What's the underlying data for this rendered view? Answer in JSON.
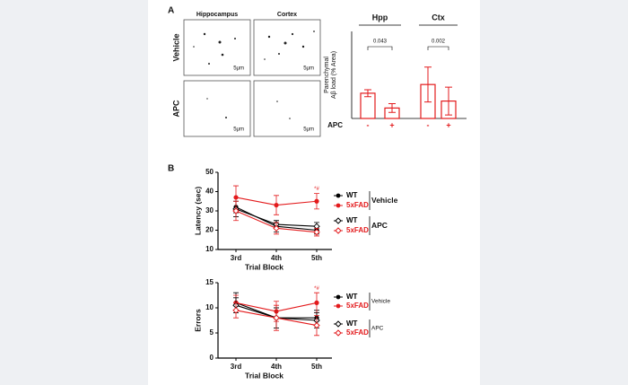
{
  "figure": {
    "panel_a": "A",
    "panel_b": "B",
    "image_columns": [
      "Hippocampus",
      "Cortex"
    ],
    "image_rows": [
      "Vehicle",
      "APC"
    ],
    "scale_bar": "5μm"
  },
  "chart_data": [
    {
      "type": "bar",
      "y_label": [
        "Parenchymal",
        "Aβ load (% Area)"
      ],
      "groups": [
        "Hpp",
        "Ctx"
      ],
      "p_values": [
        "0.043",
        "0.002"
      ],
      "x_label": "APC",
      "bar_labels": [
        "-",
        "+"
      ],
      "values": [
        [
          2.9,
          1.2
        ],
        [
          3.9,
          2.0
        ]
      ],
      "errors": [
        [
          0.4,
          0.5
        ],
        [
          2.0,
          1.6
        ]
      ],
      "color": "#e31a1c",
      "ylim": [
        0,
        10
      ]
    },
    {
      "type": "line",
      "y_label": "Latency (sec)",
      "x_label": "Trial Block",
      "categories": [
        "3rd",
        "4th",
        "5th"
      ],
      "ylim": [
        10,
        50
      ],
      "yticks": [
        10,
        20,
        30,
        40,
        50
      ],
      "annotation": "*#",
      "legend_groups": [
        "Vehicle",
        "APC"
      ],
      "series": [
        {
          "name": "WT",
          "color": "#000000",
          "marker": "filled",
          "values": [
            32,
            22,
            20
          ],
          "errors": [
            3,
            3,
            2
          ]
        },
        {
          "name": "5xFAD",
          "color": "#e31a1c",
          "marker": "filled",
          "values": [
            37,
            33,
            35
          ],
          "errors": [
            6,
            5,
            4
          ]
        },
        {
          "name": "WT",
          "color": "#000000",
          "marker": "open",
          "values": [
            31,
            23,
            22
          ],
          "errors": [
            4,
            2,
            2
          ]
        },
        {
          "name": "5xFAD",
          "color": "#e31a1c",
          "marker": "open",
          "values": [
            30,
            21,
            19
          ],
          "errors": [
            5,
            3,
            2
          ]
        }
      ]
    },
    {
      "type": "line",
      "y_label": "Errors",
      "x_label": "Trial Block",
      "categories": [
        "3rd",
        "4th",
        "5th"
      ],
      "ylim": [
        0,
        15
      ],
      "yticks": [
        0,
        5,
        10,
        15
      ],
      "annotation": "*#",
      "legend_groups": [
        "Vehicle",
        "APC"
      ],
      "series": [
        {
          "name": "WT",
          "color": "#000000",
          "marker": "filled",
          "values": [
            11,
            8,
            8
          ],
          "errors": [
            2,
            2,
            1.5
          ]
        },
        {
          "name": "5xFAD",
          "color": "#e31a1c",
          "marker": "filled",
          "values": [
            11,
            9.3,
            11
          ],
          "errors": [
            1.5,
            2,
            2
          ]
        },
        {
          "name": "WT",
          "color": "#000000",
          "marker": "open",
          "values": [
            10.5,
            8,
            7.5
          ],
          "errors": [
            1.5,
            2,
            1.5
          ]
        },
        {
          "name": "5xFAD",
          "color": "#e31a1c",
          "marker": "open",
          "values": [
            9.5,
            8,
            6.5
          ],
          "errors": [
            1.5,
            2.5,
            2
          ]
        }
      ]
    }
  ]
}
